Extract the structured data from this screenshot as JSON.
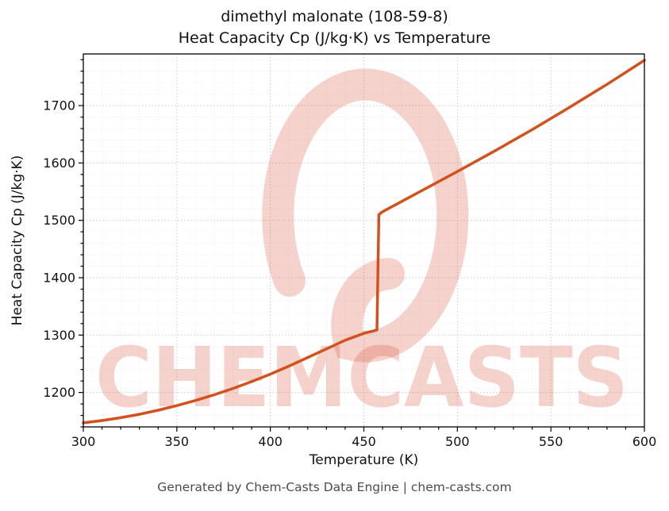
{
  "title": {
    "line1": "dimethyl malonate (108-59-8)",
    "line2": "Heat Capacity Cp (J/kg·K) vs Temperature"
  },
  "footer": "Generated by Chem-Casts Data Engine | chem-casts.com",
  "watermark": {
    "text": "CHEMCASTS",
    "color": "rgba(214,76,48,0.25)"
  },
  "chart_data": {
    "type": "line",
    "title": "dimethyl malonate (108-59-8) — Heat Capacity Cp (J/kg·K) vs Temperature",
    "xlabel": "Temperature (K)",
    "ylabel": "Heat Capacity Cp (J/kg·K)",
    "xlim": [
      300,
      600
    ],
    "ylim": [
      1140,
      1790
    ],
    "xticks": [
      300,
      350,
      400,
      450,
      500,
      550,
      600
    ],
    "yticks": [
      1200,
      1300,
      1400,
      1500,
      1600,
      1700
    ],
    "grid": true,
    "minor_grid": true,
    "legend": "none",
    "line_color": "#d2521e",
    "line_width": 3.5,
    "series": [
      {
        "name": "Heat Capacity Cp",
        "x": [
          300,
          310,
          320,
          330,
          340,
          350,
          360,
          370,
          380,
          390,
          400,
          410,
          420,
          430,
          440,
          450,
          455,
          457,
          458,
          460,
          480,
          500,
          520,
          540,
          560,
          580,
          600
        ],
        "y": [
          1147,
          1151,
          1156,
          1162,
          1169,
          1177,
          1186,
          1196,
          1207,
          1219,
          1232,
          1246,
          1261,
          1276,
          1291,
          1303,
          1307,
          1309,
          1510,
          1515,
          1550,
          1585,
          1621,
          1658,
          1697,
          1737,
          1779
        ]
      }
    ],
    "annotations": [
      "step discontinuity near 457 K (phase transition)"
    ]
  }
}
